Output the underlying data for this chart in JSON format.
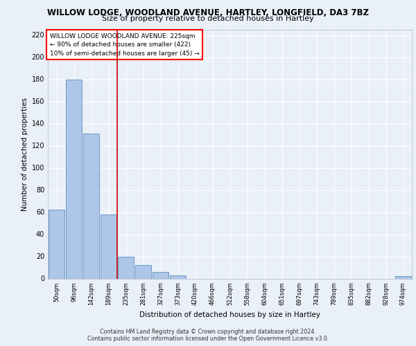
{
  "title1": "WILLOW LODGE, WOODLAND AVENUE, HARTLEY, LONGFIELD, DA3 7BZ",
  "title2": "Size of property relative to detached houses in Hartley",
  "xlabel": "Distribution of detached houses by size in Hartley",
  "ylabel": "Number of detached properties",
  "categories": [
    "50sqm",
    "96sqm",
    "142sqm",
    "189sqm",
    "235sqm",
    "281sqm",
    "327sqm",
    "373sqm",
    "420sqm",
    "466sqm",
    "512sqm",
    "558sqm",
    "604sqm",
    "651sqm",
    "697sqm",
    "743sqm",
    "789sqm",
    "835sqm",
    "882sqm",
    "928sqm",
    "974sqm"
  ],
  "values": [
    62,
    180,
    131,
    58,
    20,
    12,
    6,
    3,
    0,
    0,
    0,
    0,
    0,
    0,
    0,
    0,
    0,
    0,
    0,
    0,
    2
  ],
  "bar_color": "#aec6e8",
  "bar_edge_color": "#5a8fc0",
  "ref_line_index": 4,
  "ref_line_color": "#cc0000",
  "ylim": [
    0,
    225
  ],
  "yticks": [
    0,
    20,
    40,
    60,
    80,
    100,
    120,
    140,
    160,
    180,
    200,
    220
  ],
  "annotation_line1": "WILLOW LODGE WOODLAND AVENUE: 225sqm",
  "annotation_line2": "← 90% of detached houses are smaller (422)",
  "annotation_line3": "10% of semi-detached houses are larger (45) →",
  "footer": "Contains HM Land Registry data © Crown copyright and database right 2024.\nContains public sector information licensed under the Open Government Licence v3.0.",
  "bg_color": "#eaf0f8",
  "plot_bg_color": "#eaf0f8",
  "grid_color": "#ffffff"
}
